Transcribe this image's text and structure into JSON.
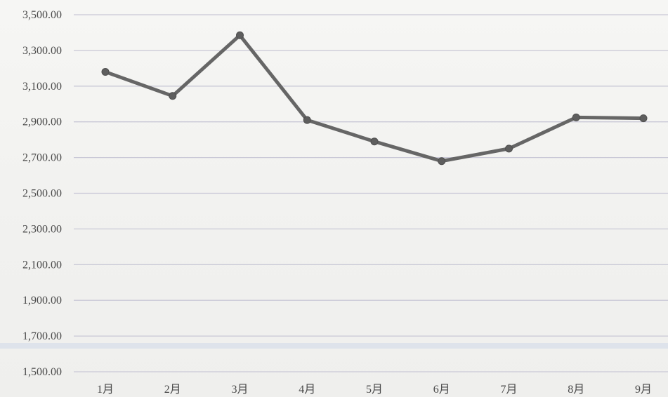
{
  "chart_data": {
    "type": "line",
    "title": "",
    "xlabel": "",
    "ylabel": "",
    "categories": [
      "1月",
      "2月",
      "3月",
      "4月",
      "5月",
      "6月",
      "7月",
      "8月",
      "9月"
    ],
    "series": [
      {
        "values": [
          3180,
          3045,
          3385,
          2910,
          2790,
          2680,
          2750,
          2925,
          2920
        ]
      }
    ],
    "ylim": [
      1500,
      3500
    ],
    "yticks": [
      1500,
      1700,
      1900,
      2100,
      2300,
      2500,
      2700,
      2900,
      3100,
      3300,
      3500
    ],
    "ytick_labels": [
      "1,500.00",
      "1,700.00",
      "1,900.00",
      "2,100.00",
      "2,300.00",
      "2,500.00",
      "2,700.00",
      "2,900.00",
      "3,100.00",
      "3,300.00",
      "3,500.00"
    ],
    "grid": true,
    "legend": "none",
    "colors": {
      "line": "#666666",
      "marker": "#5e5e5e",
      "grid": "#c9c8d6",
      "text": "#4a4a4a"
    }
  }
}
